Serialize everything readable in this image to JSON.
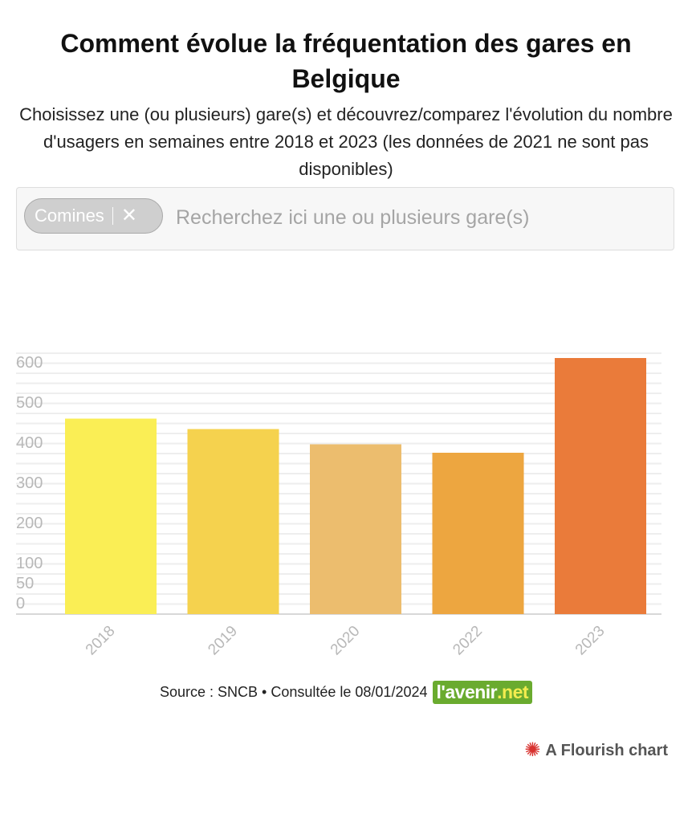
{
  "title": "Comment évolue la fréquentation des gares en Belgique",
  "subtitle": "Choisissez une (ou plusieurs) gare(s) et découvrez/comparez l'évolution du nombre d'usagers en semaines entre 2018 et 2023 (les données de 2021 ne sont pas disponibles)",
  "search": {
    "chip_label": "Comines",
    "chip_close": "✕",
    "placeholder": "Recherchez ici une ou plusieurs gare(s)"
  },
  "chart_data": {
    "type": "bar",
    "categories": [
      "2018",
      "2019",
      "2020",
      "2022",
      "2023"
    ],
    "values": [
      487,
      461,
      423,
      402,
      638
    ],
    "colors": [
      "#faee55",
      "#f5d24e",
      "#ecbd6e",
      "#eda640",
      "#ea7b3a"
    ],
    "y_ticks": [
      0,
      50,
      100,
      200,
      300,
      400,
      500,
      600
    ],
    "ylim": [
      0,
      650
    ],
    "grid": true,
    "title": "",
    "xlabel": "",
    "ylabel": ""
  },
  "footer": {
    "source": "Source : SNCB • Consultée le 08/01/2024",
    "logo_main": "l'avenir",
    "logo_net": ".net",
    "flourish_icon": "✺",
    "flourish_label": "A Flourish chart"
  }
}
